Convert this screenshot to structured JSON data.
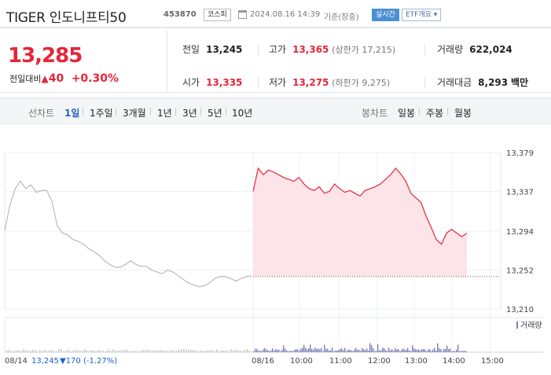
{
  "header": {
    "title": "TIGER 인도니프티50",
    "code": "453870",
    "market_badge": "코스피",
    "datetime": "2024.08.16 14:39",
    "basis": "기준(장중)",
    "live_badge": "실시간",
    "etf_badge": "ETF개요 ▾"
  },
  "price": {
    "current": "13,285",
    "change_label": "전일대비",
    "change_arrow": "▲",
    "change_value": "40",
    "change_pct": "+0.30%"
  },
  "stats": {
    "prev_label": "전일",
    "prev": "13,245",
    "open_label": "시가",
    "open": "13,335",
    "high_label": "고가",
    "high": "13,365",
    "upper_limit": "(상한가 17,215)",
    "low_label": "저가",
    "low": "13,275",
    "lower_limit": "(하한가 9,275)",
    "volume_label": "거래량",
    "volume": "622,024",
    "value_label": "거래대금",
    "value": "8,293",
    "value_unit": "백만"
  },
  "toolbar": {
    "line_label": "선차트",
    "periods": [
      "1일",
      "1주일",
      "3개월",
      "1년",
      "3년",
      "5년",
      "10년"
    ],
    "active": "1일",
    "candle_label": "봉차트",
    "candles": [
      "일봉",
      "주봉",
      "월봉"
    ]
  },
  "chart_data": {
    "type": "line",
    "y_ticks": [
      "13,379",
      "13,337",
      "13,294",
      "13,252",
      "13,210"
    ],
    "ylim": [
      13210,
      13379
    ],
    "x_ticks": [
      "08/16",
      "10:00",
      "11:00",
      "12:00",
      "13:00",
      "14:00",
      "15:00"
    ],
    "prev_day_label": "08/14",
    "prev_close_value": 13245,
    "prev_close_text": "13,245",
    "prev_change_text": "▼170 (-1.27%)",
    "volume_label": "거래량",
    "prev_close_ref": 13245,
    "series": [
      {
        "name": "08/14",
        "values": [
          13295,
          13322,
          13340,
          13348,
          13340,
          13344,
          13336,
          13338,
          13338,
          13326,
          13300,
          13292,
          13290,
          13285,
          13283,
          13280,
          13275,
          13272,
          13268,
          13262,
          13258,
          13255,
          13255,
          13258,
          13262,
          13258,
          13256,
          13256,
          13252,
          13250,
          13248,
          13252,
          13250,
          13246,
          13242,
          13238,
          13236,
          13234,
          13235,
          13238,
          13243,
          13245,
          13245,
          13243,
          13240,
          13243,
          13245,
          13246
        ]
      },
      {
        "name": "08/16",
        "values": [
          13337,
          13362,
          13355,
          13360,
          13358,
          13355,
          13352,
          13350,
          13348,
          13352,
          13345,
          13340,
          13338,
          13342,
          13335,
          13337,
          13345,
          13340,
          13336,
          13338,
          13335,
          13332,
          13338,
          13340,
          13342,
          13345,
          13350,
          13355,
          13362,
          13356,
          13348,
          13335,
          13330,
          13325,
          13310,
          13298,
          13285,
          13280,
          13292,
          13296,
          13292,
          13288,
          13292
        ]
      }
    ]
  }
}
